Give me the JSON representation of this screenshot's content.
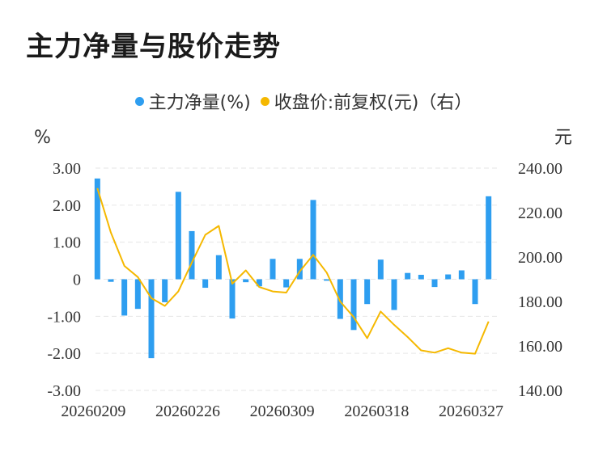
{
  "title": "主力净量与股价走势",
  "colors": {
    "bar": "#2e9ef0",
    "line": "#f5b800",
    "grid": "#e6e6e6",
    "text": "#333333"
  },
  "legend": [
    {
      "label": "主力净量(%)",
      "color": "#2e9ef0"
    },
    {
      "label": "收盘价:前复权(元)（右）",
      "color": "#f5b800"
    }
  ],
  "chart_data": {
    "type": "bar+line",
    "left_axis": {
      "unit": "%",
      "ylim": [
        -3,
        3
      ],
      "ticks": [
        "3.00",
        "2.00",
        "1.00",
        "0",
        "-1.00",
        "-2.00",
        "-3.00"
      ]
    },
    "right_axis": {
      "unit": "元",
      "ylim": [
        140,
        240
      ],
      "ticks": [
        "240.00",
        "220.00",
        "200.00",
        "180.00",
        "160.00",
        "140.00"
      ]
    },
    "x_tick_labels": [
      "20260209",
      "20260226",
      "20260309",
      "20260318",
      "20260327"
    ],
    "x_tick_positions": [
      0,
      7,
      14,
      21,
      28
    ],
    "series": [
      {
        "name": "主力净量(%)",
        "type": "bar",
        "axis": "left",
        "values": [
          2.72,
          -0.07,
          -0.98,
          -0.8,
          -2.13,
          -0.62,
          2.36,
          1.3,
          -0.23,
          0.65,
          -1.06,
          -0.08,
          -0.19,
          0.55,
          -0.22,
          0.55,
          2.14,
          -0.04,
          -1.07,
          -1.37,
          -0.67,
          0.53,
          -0.83,
          0.17,
          0.12,
          -0.21,
          0.13,
          0.24,
          -0.67,
          2.24
        ]
      },
      {
        "name": "收盘价:前复权(元)（右）",
        "type": "line",
        "axis": "right",
        "values": [
          231.0,
          211.0,
          196.0,
          191.0,
          181.5,
          178.0,
          184.5,
          197.5,
          210.0,
          214.0,
          188.0,
          194.0,
          186.5,
          184.5,
          184.0,
          193.5,
          201.0,
          193.0,
          180.0,
          173.0,
          163.5,
          175.5,
          169.5,
          164.0,
          158.0,
          157.0,
          159.0,
          157.0,
          156.5,
          171.0
        ]
      }
    ],
    "grid": true,
    "legend_position": "top-center"
  }
}
